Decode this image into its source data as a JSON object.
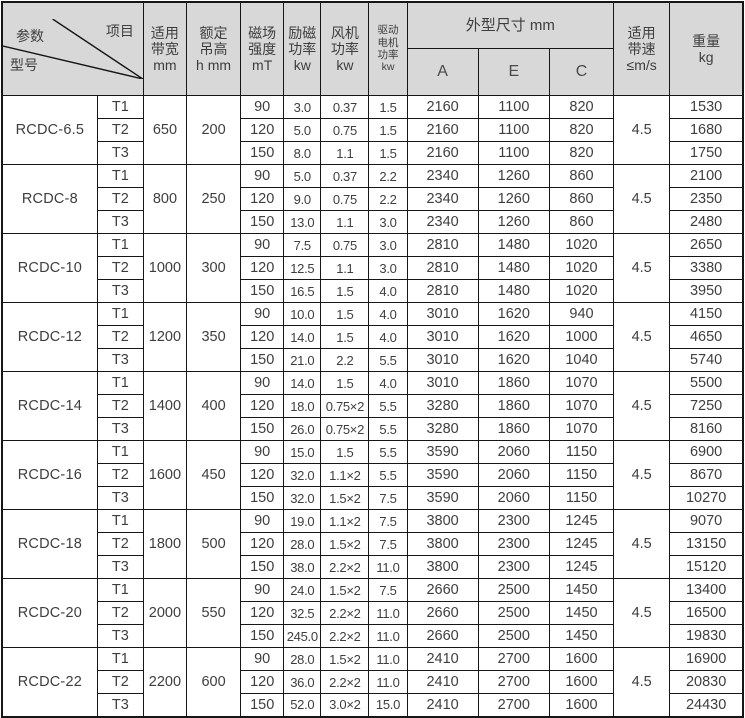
{
  "header": {
    "diagonal": {
      "param": "参数",
      "item": "项目",
      "model": "型号"
    },
    "cols": {
      "bandwidth": "适用\n带宽\nmm",
      "lift_height": "额定\n吊高\nh mm",
      "field_strength": "磁场\n强度\nmT",
      "excitation_power": "励磁\n功率\nkw",
      "fan_power": "风机\n功率\nkw",
      "motor_power": "驱动\n电机\n功率\nkw",
      "dimensions": "外型尺寸 mm",
      "dim_a": "A",
      "dim_e": "E",
      "dim_c": "C",
      "belt_speed": "适用\n带速\n≤m/s",
      "weight": "重量\nkg"
    }
  },
  "colors": {
    "header_bg": "#d8d8d8",
    "border": "#161616",
    "text": "#3e3e3e",
    "cell_bg": "#ffffff"
  },
  "groups": [
    {
      "model": "RCDC-6.5",
      "bandwidth": "650",
      "lift_height": "200",
      "belt_speed": "4.5",
      "rows": [
        {
          "t": "T1",
          "field_mt": "90",
          "excitation_kw": "3.0",
          "fan_kw": "0.37",
          "motor_kw": "1.5",
          "A": "2160",
          "E": "1100",
          "C": "820",
          "weight": "1530"
        },
        {
          "t": "T2",
          "field_mt": "120",
          "excitation_kw": "5.0",
          "fan_kw": "0.75",
          "motor_kw": "1.5",
          "A": "2160",
          "E": "1100",
          "C": "820",
          "weight": "1680"
        },
        {
          "t": "T3",
          "field_mt": "150",
          "excitation_kw": "8.0",
          "fan_kw": "1.1",
          "motor_kw": "1.5",
          "A": "2160",
          "E": "1100",
          "C": "820",
          "weight": "1750"
        }
      ]
    },
    {
      "model": "RCDC-8",
      "bandwidth": "800",
      "lift_height": "250",
      "belt_speed": "4.5",
      "rows": [
        {
          "t": "T1",
          "field_mt": "90",
          "excitation_kw": "5.0",
          "fan_kw": "0.37",
          "motor_kw": "2.2",
          "A": "2340",
          "E": "1260",
          "C": "860",
          "weight": "2100"
        },
        {
          "t": "T2",
          "field_mt": "120",
          "excitation_kw": "9.0",
          "fan_kw": "0.75",
          "motor_kw": "2.2",
          "A": "2340",
          "E": "1260",
          "C": "860",
          "weight": "2350"
        },
        {
          "t": "T3",
          "field_mt": "150",
          "excitation_kw": "13.0",
          "fan_kw": "1.1",
          "motor_kw": "3.0",
          "A": "2340",
          "E": "1260",
          "C": "860",
          "weight": "2480"
        }
      ]
    },
    {
      "model": "RCDC-10",
      "bandwidth": "1000",
      "lift_height": "300",
      "belt_speed": "4.5",
      "rows": [
        {
          "t": "T1",
          "field_mt": "90",
          "excitation_kw": "7.5",
          "fan_kw": "0.75",
          "motor_kw": "3.0",
          "A": "2810",
          "E": "1480",
          "C": "1020",
          "weight": "2650"
        },
        {
          "t": "T2",
          "field_mt": "120",
          "excitation_kw": "12.5",
          "fan_kw": "1.1",
          "motor_kw": "3.0",
          "A": "2810",
          "E": "1480",
          "C": "1020",
          "weight": "3380"
        },
        {
          "t": "T3",
          "field_mt": "150",
          "excitation_kw": "16.5",
          "fan_kw": "1.5",
          "motor_kw": "4.0",
          "A": "2810",
          "E": "1480",
          "C": "1020",
          "weight": "3950"
        }
      ]
    },
    {
      "model": "RCDC-12",
      "bandwidth": "1200",
      "lift_height": "350",
      "belt_speed": "4.5",
      "rows": [
        {
          "t": "T1",
          "field_mt": "90",
          "excitation_kw": "10.0",
          "fan_kw": "1.5",
          "motor_kw": "4.0",
          "A": "3010",
          "E": "1620",
          "C": "940",
          "weight": "4150"
        },
        {
          "t": "T2",
          "field_mt": "120",
          "excitation_kw": "14.0",
          "fan_kw": "1.5",
          "motor_kw": "4.0",
          "A": "3010",
          "E": "1620",
          "C": "1000",
          "weight": "4650"
        },
        {
          "t": "T3",
          "field_mt": "150",
          "excitation_kw": "21.0",
          "fan_kw": "2.2",
          "motor_kw": "5.5",
          "A": "3010",
          "E": "1620",
          "C": "1040",
          "weight": "5740"
        }
      ]
    },
    {
      "model": "RCDC-14",
      "bandwidth": "1400",
      "lift_height": "400",
      "belt_speed": "4.5",
      "rows": [
        {
          "t": "T1",
          "field_mt": "90",
          "excitation_kw": "14.0",
          "fan_kw": "1.5",
          "motor_kw": "4.0",
          "A": "3010",
          "E": "1860",
          "C": "1070",
          "weight": "5500"
        },
        {
          "t": "T2",
          "field_mt": "120",
          "excitation_kw": "18.0",
          "fan_kw": "0.75×2",
          "motor_kw": "5.5",
          "A": "3280",
          "E": "1860",
          "C": "1070",
          "weight": "7250"
        },
        {
          "t": "T3",
          "field_mt": "150",
          "excitation_kw": "26.0",
          "fan_kw": "0.75×2",
          "motor_kw": "5.5",
          "A": "3280",
          "E": "1860",
          "C": "1070",
          "weight": "8160"
        }
      ]
    },
    {
      "model": "RCDC-16",
      "bandwidth": "1600",
      "lift_height": "450",
      "belt_speed": "4.5",
      "rows": [
        {
          "t": "T1",
          "field_mt": "90",
          "excitation_kw": "15.0",
          "fan_kw": "1.5",
          "motor_kw": "5.5",
          "A": "3590",
          "E": "2060",
          "C": "1150",
          "weight": "6900"
        },
        {
          "t": "T2",
          "field_mt": "120",
          "excitation_kw": "32.0",
          "fan_kw": "1.1×2",
          "motor_kw": "5.5",
          "A": "3590",
          "E": "2060",
          "C": "1150",
          "weight": "8670"
        },
        {
          "t": "T3",
          "field_mt": "150",
          "excitation_kw": "32.0",
          "fan_kw": "1.5×2",
          "motor_kw": "7.5",
          "A": "3590",
          "E": "2060",
          "C": "1150",
          "weight": "10270"
        }
      ]
    },
    {
      "model": "RCDC-18",
      "bandwidth": "1800",
      "lift_height": "500",
      "belt_speed": "4.5",
      "rows": [
        {
          "t": "T1",
          "field_mt": "90",
          "excitation_kw": "19.0",
          "fan_kw": "1.1×2",
          "motor_kw": "7.5",
          "A": "3800",
          "E": "2300",
          "C": "1245",
          "weight": "9070"
        },
        {
          "t": "T2",
          "field_mt": "120",
          "excitation_kw": "28.0",
          "fan_kw": "1.5×2",
          "motor_kw": "7.5",
          "A": "3800",
          "E": "2300",
          "C": "1245",
          "weight": "13150"
        },
        {
          "t": "T3",
          "field_mt": "150",
          "excitation_kw": "38.0",
          "fan_kw": "2.2×2",
          "motor_kw": "11.0",
          "A": "3800",
          "E": "2300",
          "C": "1245",
          "weight": "15120"
        }
      ]
    },
    {
      "model": "RCDC-20",
      "bandwidth": "2000",
      "lift_height": "550",
      "belt_speed": "4.5",
      "rows": [
        {
          "t": "T1",
          "field_mt": "90",
          "excitation_kw": "24.0",
          "fan_kw": "1.5×2",
          "motor_kw": "7.5",
          "A": "2660",
          "E": "2500",
          "C": "1450",
          "weight": "13400"
        },
        {
          "t": "T2",
          "field_mt": "120",
          "excitation_kw": "32.5",
          "fan_kw": "2.2×2",
          "motor_kw": "11.0",
          "A": "2660",
          "E": "2500",
          "C": "1450",
          "weight": "16500"
        },
        {
          "t": "T3",
          "field_mt": "150",
          "excitation_kw": "245.0",
          "fan_kw": "2.2×2",
          "motor_kw": "11.0",
          "A": "2660",
          "E": "2500",
          "C": "1450",
          "weight": "19830"
        }
      ]
    },
    {
      "model": "RCDC-22",
      "bandwidth": "2200",
      "lift_height": "600",
      "belt_speed": "4.5",
      "rows": [
        {
          "t": "T1",
          "field_mt": "90",
          "excitation_kw": "28.0",
          "fan_kw": "1.5×2",
          "motor_kw": "11.0",
          "A": "2410",
          "E": "2700",
          "C": "1600",
          "weight": "16900"
        },
        {
          "t": "T2",
          "field_mt": "120",
          "excitation_kw": "36.0",
          "fan_kw": "2.2×2",
          "motor_kw": "11.0",
          "A": "2410",
          "E": "2700",
          "C": "1600",
          "weight": "20830"
        },
        {
          "t": "T3",
          "field_mt": "150",
          "excitation_kw": "52.0",
          "fan_kw": "3.0×2",
          "motor_kw": "15.0",
          "A": "2410",
          "E": "2700",
          "C": "1600",
          "weight": "24430"
        }
      ]
    }
  ]
}
